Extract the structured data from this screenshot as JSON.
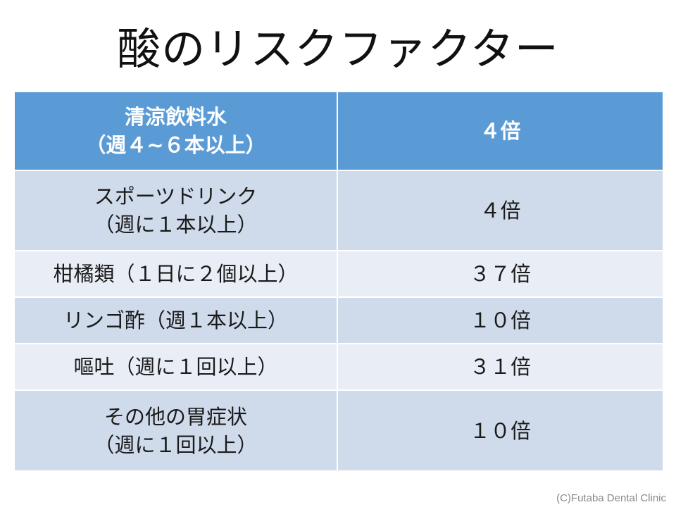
{
  "title": "酸のリスクファクター",
  "header": {
    "col1_line1": "清涼飲料水",
    "col1_line2": "（週４~６本以上）",
    "col2": "４倍"
  },
  "rows": [
    {
      "factor_line1": "スポーツドリンク",
      "factor_line2": "（週に１本以上）",
      "risk": "４倍"
    },
    {
      "factor_line1": "柑橘類（１日に２個以上）",
      "risk": "３７倍"
    },
    {
      "factor_line1": "リンゴ酢（週１本以上）",
      "risk": "１０倍"
    },
    {
      "factor_line1": "嘔吐（週に１回以上）",
      "risk": "３１倍"
    },
    {
      "factor_line1": "その他の胃症状",
      "factor_line2": "（週に１回以上）",
      "risk": "１０倍"
    }
  ],
  "copyright": "(C)Futaba Dental Clinic",
  "colors": {
    "header_bg": "#5b9bd5",
    "row_dark": "#cfdaeb",
    "row_light": "#e9eef6"
  }
}
